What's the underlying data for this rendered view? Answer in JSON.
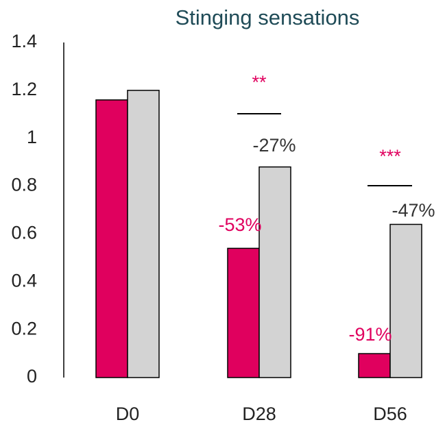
{
  "chart_data": {
    "type": "bar",
    "title": "Stinging sensations",
    "categories": [
      "D0",
      "D28",
      "D56"
    ],
    "series": [
      {
        "color": "#e0005e",
        "values": [
          1.16,
          0.54,
          0.1
        ]
      },
      {
        "color": "#d3d3d3",
        "values": [
          1.2,
          0.88,
          0.64
        ]
      }
    ],
    "ylim": [
      0,
      1.4
    ],
    "yticks": [
      0,
      0.2,
      0.4,
      0.6,
      0.8,
      1,
      1.2,
      1.4
    ],
    "grid": false,
    "annotations": [
      "**",
      "-27%",
      "-53%",
      "***",
      "-47%",
      "-91%"
    ]
  }
}
